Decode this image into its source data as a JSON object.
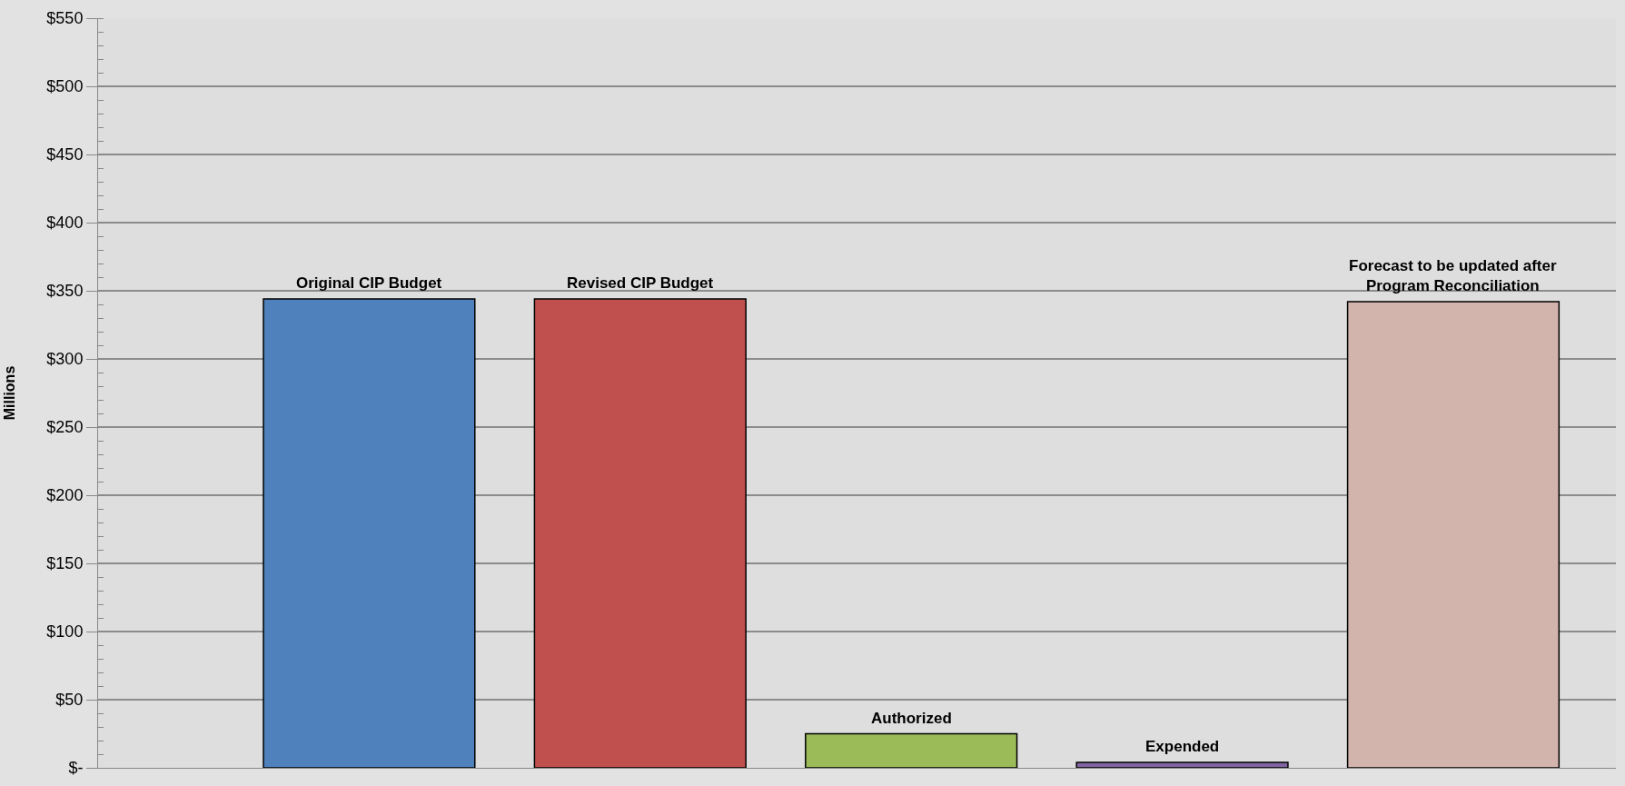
{
  "chart_data": {
    "type": "bar",
    "ylabel": "Millions",
    "categories": [
      null,
      null,
      null,
      null,
      null
    ],
    "series": [
      {
        "name": "Original CIP Budget",
        "color": "#4f81bd",
        "values": [
          344,
          null,
          null,
          null,
          null
        ]
      },
      {
        "name": "Revised CIP Budget",
        "color": "#c0504d",
        "values": [
          null,
          344,
          null,
          null,
          null
        ]
      },
      {
        "name": "Authorized",
        "color": "#9bbb59",
        "values": [
          null,
          null,
          25,
          null,
          null
        ]
      },
      {
        "name": "Expended",
        "color": "#8064a2",
        "values": [
          null,
          null,
          null,
          4,
          null
        ]
      },
      {
        "name": "Forecast to be updated after\nProgram Reconciliation",
        "color": "#d2b4ac",
        "values": [
          null,
          null,
          null,
          null,
          342
        ]
      }
    ],
    "ylim": [
      0,
      550
    ],
    "yticks": [
      {
        "value": 0,
        "label": "$-"
      },
      {
        "value": 50,
        "label": "$50"
      },
      {
        "value": 100,
        "label": "$100"
      },
      {
        "value": 150,
        "label": "$150"
      },
      {
        "value": 200,
        "label": "$200"
      },
      {
        "value": 250,
        "label": "$250"
      },
      {
        "value": 300,
        "label": "$300"
      },
      {
        "value": 350,
        "label": "$350"
      },
      {
        "value": 400,
        "label": "$400"
      },
      {
        "value": 450,
        "label": "$450"
      },
      {
        "value": 500,
        "label": "$500"
      },
      {
        "value": 550,
        "label": "$550"
      }
    ],
    "grid": "y",
    "legend": false
  }
}
